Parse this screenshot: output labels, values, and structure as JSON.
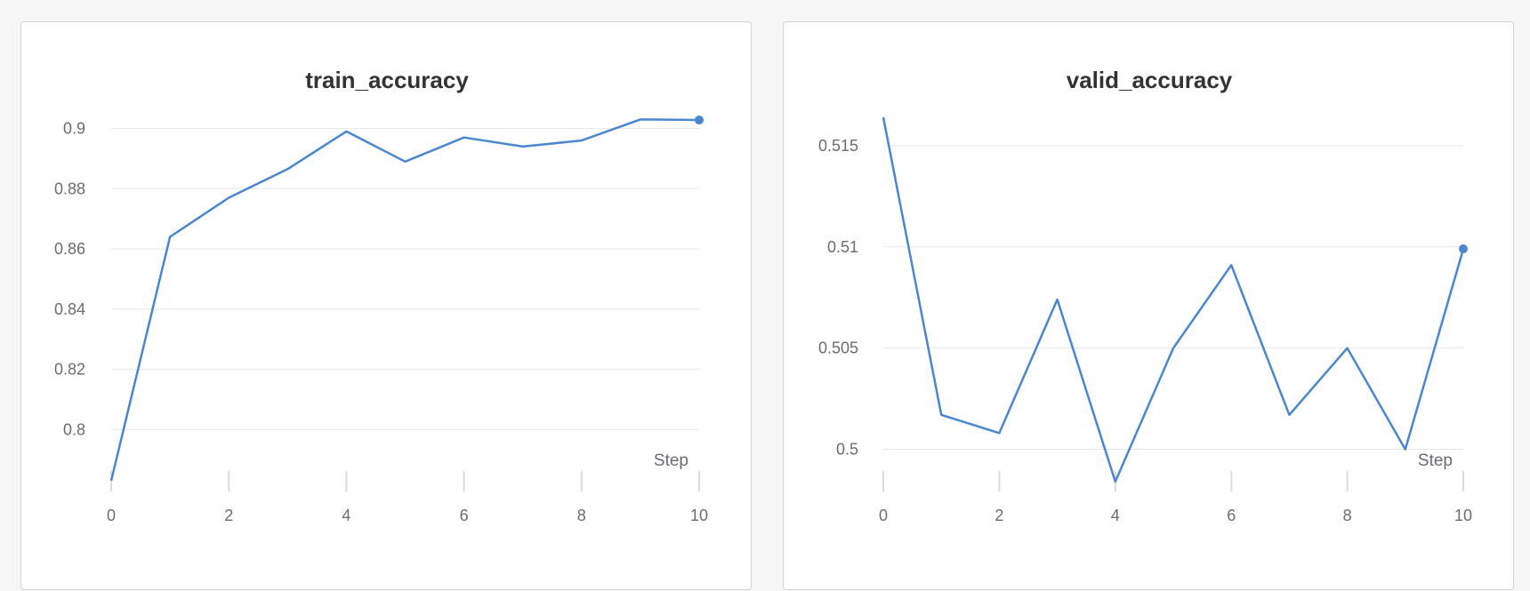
{
  "chart_data": [
    {
      "type": "line",
      "title": "train_accuracy",
      "xlabel": "Step",
      "ylabel": "",
      "x": [
        0,
        1,
        2,
        3,
        4,
        5,
        6,
        7,
        8,
        9,
        10
      ],
      "series": [
        {
          "values": [
            0.783,
            0.864,
            0.877,
            0.8865,
            0.899,
            0.889,
            0.897,
            0.894,
            0.896,
            0.903,
            0.9028
          ],
          "color": "#4a87cf"
        }
      ],
      "xticks": [
        0,
        2,
        4,
        6,
        8,
        10
      ],
      "xtick_labels": [
        "0",
        "2",
        "4",
        "6",
        "8",
        "10"
      ],
      "yticks": [
        0.8,
        0.82,
        0.84,
        0.86,
        0.88,
        0.9
      ],
      "ytick_labels": [
        "0.8",
        "0.82",
        "0.84",
        "0.86",
        "0.88",
        "0.9"
      ],
      "xlim": [
        0,
        10
      ],
      "ylim": [
        0.783,
        0.9037
      ],
      "grid": true,
      "legend": "none",
      "last_point_marker": true
    },
    {
      "type": "line",
      "title": "valid_accuracy",
      "xlabel": "Step",
      "ylabel": "",
      "x": [
        0,
        1,
        2,
        3,
        4,
        5,
        6,
        7,
        8,
        9,
        10
      ],
      "series": [
        {
          "values": [
            0.5164,
            0.5017,
            0.5008,
            0.5074,
            0.4984,
            0.505,
            0.5091,
            0.5017,
            0.505,
            0.5,
            0.5099
          ],
          "color": "#4a87cf"
        }
      ],
      "xticks": [
        0,
        2,
        4,
        6,
        8,
        10
      ],
      "xtick_labels": [
        "0",
        "2",
        "4",
        "6",
        "8",
        "10"
      ],
      "yticks": [
        0.5,
        0.505,
        0.51,
        0.515
      ],
      "ytick_labels": [
        "0.5",
        "0.505",
        "0.51",
        "0.515"
      ],
      "xlim": [
        0,
        10
      ],
      "ylim": [
        0.4984,
        0.5164
      ],
      "grid": true,
      "legend": "none",
      "last_point_marker": true
    }
  ]
}
